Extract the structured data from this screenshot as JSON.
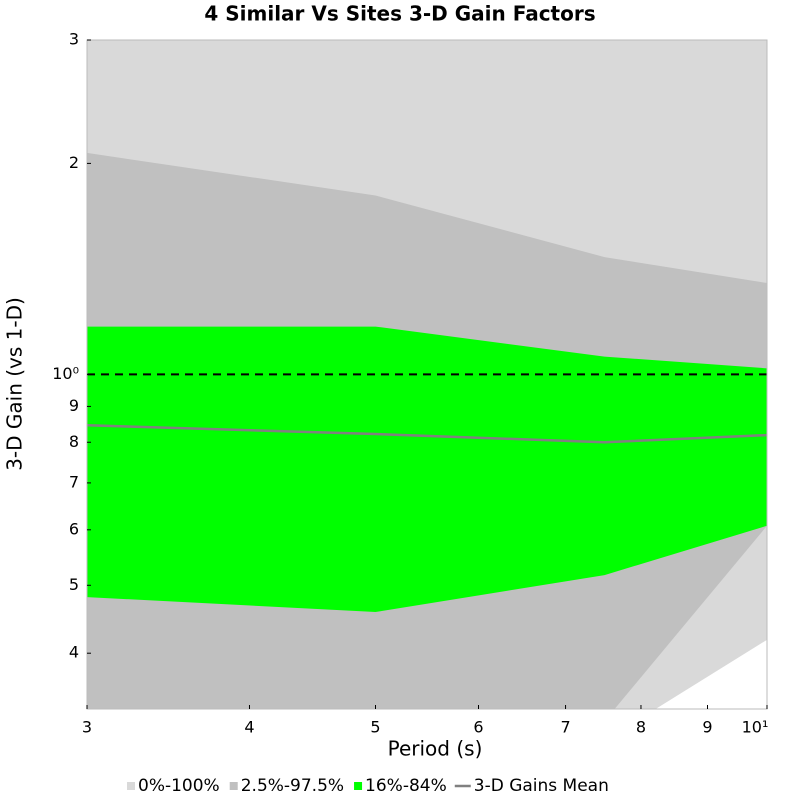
{
  "chart_data": {
    "type": "area",
    "title": "4 Similar Vs Sites 3-D Gain Factors",
    "x_label": "Period (s)",
    "y_label": "3-D Gain (vs 1-D)",
    "x": [
      3,
      5,
      7.5,
      10
    ],
    "xscale": "log",
    "yscale": "log",
    "xlim": [
      3,
      10
    ],
    "ylim": [
      0.333,
      3
    ],
    "xticks": [
      3,
      4,
      5,
      6,
      7,
      8,
      9,
      {
        "value": 10,
        "label": "10¹"
      }
    ],
    "yticks": [
      {
        "value": 0.4,
        "label": "4"
      },
      {
        "value": 0.5,
        "label": "5"
      },
      {
        "value": 0.6,
        "label": "6"
      },
      {
        "value": 0.7,
        "label": "7"
      },
      {
        "value": 0.8,
        "label": "8"
      },
      {
        "value": 0.9,
        "label": "9"
      },
      {
        "value": 1,
        "label": "10⁰"
      },
      2,
      3
    ],
    "reference_line": 1,
    "series": [
      {
        "name": "0%-100%",
        "color": "#d9d9d9",
        "lower": [
          0.25,
          0.25,
          0.3,
          0.418
        ],
        "upper": [
          3.5,
          3.5,
          3.5,
          3.5
        ]
      },
      {
        "name": "2.5%-97.5%",
        "color": "#c0c0c0",
        "lower": [
          0.3,
          0.3,
          0.32,
          0.608
        ],
        "upper": [
          2.07,
          1.8,
          1.47,
          1.35
        ]
      },
      {
        "name": "16%-84%",
        "color": "#00ff00",
        "lower": [
          0.481,
          0.458,
          0.517,
          0.608
        ],
        "upper": [
          1.17,
          1.17,
          1.06,
          1.02
        ]
      },
      {
        "name": "3-D Gains Mean",
        "color": "#808080",
        "values": [
          0.846,
          0.822,
          0.8,
          0.819
        ]
      }
    ]
  }
}
